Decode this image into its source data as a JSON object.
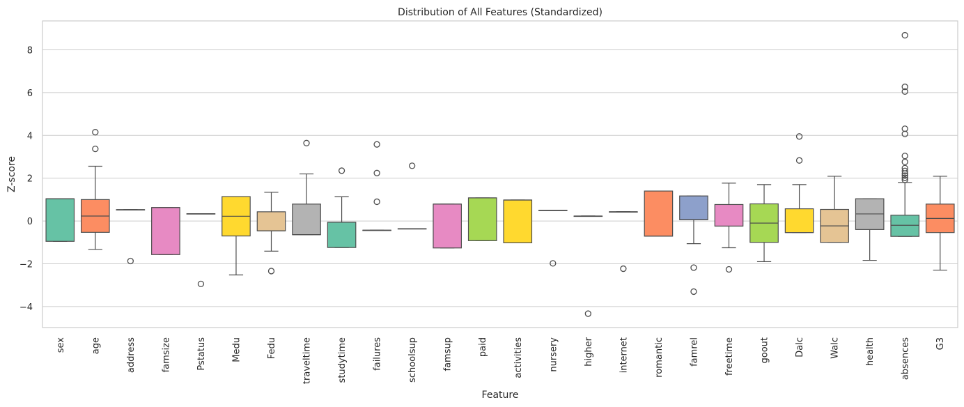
{
  "chart_data": {
    "type": "box",
    "title": "Distribution of All Features (Standardized)",
    "xlabel": "Feature",
    "ylabel": "Z-score",
    "ylim": [
      -4.98,
      9.35
    ],
    "yticks": [
      -4,
      -2,
      0,
      2,
      4,
      6,
      8
    ],
    "grid": "horizontal",
    "legend": "none",
    "categories": [
      "sex",
      "age",
      "address",
      "famsize",
      "Pstatus",
      "Medu",
      "Fedu",
      "traveltime",
      "studytime",
      "failures",
      "schoolsup",
      "famsup",
      "paid",
      "activities",
      "nursery",
      "higher",
      "internet",
      "romantic",
      "famrel",
      "freetime",
      "goout",
      "Dalc",
      "Walc",
      "health",
      "absences",
      "G3"
    ],
    "colors": [
      "#66c2a5",
      "#fc8d62",
      "#8da0cb",
      "#e78ac3",
      "#a6d854",
      "#ffd92f",
      "#e5c494",
      "#b3b3b3"
    ],
    "boxes": [
      {
        "q1": -0.95,
        "median": 1.04,
        "q3": 1.04,
        "wlow": -0.95,
        "whigh": 1.04,
        "outliers": []
      },
      {
        "q1": -0.53,
        "median": 0.23,
        "q3": 1.0,
        "wlow": -1.33,
        "whigh": 2.56,
        "outliers": [
          3.37,
          4.15
        ]
      },
      {
        "q1": 0.53,
        "median": 0.53,
        "q3": 0.53,
        "wlow": 0.53,
        "whigh": 0.53,
        "outliers": [
          -1.87
        ]
      },
      {
        "q1": -1.57,
        "median": 0.63,
        "q3": 0.63,
        "wlow": -1.57,
        "whigh": 0.63,
        "outliers": []
      },
      {
        "q1": 0.34,
        "median": 0.34,
        "q3": 0.34,
        "wlow": 0.34,
        "whigh": 0.34,
        "outliers": [
          -2.94
        ]
      },
      {
        "q1": -0.7,
        "median": 0.22,
        "q3": 1.14,
        "wlow": -2.52,
        "whigh": 1.14,
        "outliers": []
      },
      {
        "q1": -0.46,
        "median": -0.46,
        "q3": 0.43,
        "wlow": -1.41,
        "whigh": 1.34,
        "outliers": [
          -2.34
        ]
      },
      {
        "q1": -0.64,
        "median": -0.64,
        "q3": 0.79,
        "wlow": -0.64,
        "whigh": 2.2,
        "outliers": [
          3.64
        ]
      },
      {
        "q1": -1.24,
        "median": -0.06,
        "q3": -0.06,
        "wlow": -1.24,
        "whigh": 1.13,
        "outliers": [
          2.35
        ]
      },
      {
        "q1": -0.43,
        "median": -0.43,
        "q3": -0.43,
        "wlow": -0.43,
        "whigh": -0.43,
        "outliers": [
          0.9,
          2.24,
          3.58
        ]
      },
      {
        "q1": -0.36,
        "median": -0.36,
        "q3": -0.36,
        "wlow": -0.36,
        "whigh": -0.36,
        "outliers": [
          2.58
        ]
      },
      {
        "q1": -1.26,
        "median": 0.79,
        "q3": 0.79,
        "wlow": -1.26,
        "whigh": 0.79,
        "outliers": []
      },
      {
        "q1": -0.92,
        "median": 1.08,
        "q3": 1.08,
        "wlow": -0.92,
        "whigh": 1.08,
        "outliers": []
      },
      {
        "q1": -1.02,
        "median": 0.98,
        "q3": 0.98,
        "wlow": -1.02,
        "whigh": 0.98,
        "outliers": []
      },
      {
        "q1": 0.5,
        "median": 0.5,
        "q3": 0.5,
        "wlow": 0.5,
        "whigh": 0.5,
        "outliers": [
          -1.98
        ]
      },
      {
        "q1": 0.23,
        "median": 0.23,
        "q3": 0.23,
        "wlow": 0.23,
        "whigh": 0.23,
        "outliers": [
          -4.33
        ]
      },
      {
        "q1": 0.43,
        "median": 0.43,
        "q3": 0.43,
        "wlow": 0.43,
        "whigh": 0.43,
        "outliers": [
          -2.23
        ]
      },
      {
        "q1": -0.71,
        "median": -0.71,
        "q3": 1.4,
        "wlow": -0.71,
        "whigh": 1.4,
        "outliers": []
      },
      {
        "q1": 0.06,
        "median": 0.06,
        "q3": 1.17,
        "wlow": -1.06,
        "whigh": 1.17,
        "outliers": [
          -2.18,
          -3.3
        ]
      },
      {
        "q1": -0.24,
        "median": -0.24,
        "q3": 0.77,
        "wlow": -1.25,
        "whigh": 1.77,
        "outliers": [
          -2.26
        ]
      },
      {
        "q1": -1.0,
        "median": -0.1,
        "q3": 0.8,
        "wlow": -1.9,
        "whigh": 1.7,
        "outliers": []
      },
      {
        "q1": -0.54,
        "median": -0.54,
        "q3": 0.57,
        "wlow": -0.54,
        "whigh": 1.7,
        "outliers": [
          2.83,
          3.95
        ]
      },
      {
        "q1": -1.0,
        "median": -0.23,
        "q3": 0.54,
        "wlow": -1.0,
        "whigh": 2.09,
        "outliers": []
      },
      {
        "q1": -0.4,
        "median": 0.33,
        "q3": 1.04,
        "wlow": -1.84,
        "whigh": 1.04,
        "outliers": []
      },
      {
        "q1": -0.72,
        "median": -0.2,
        "q3": 0.27,
        "wlow": -0.72,
        "whigh": 1.8,
        "outliers": [
          1.92,
          2.02,
          2.12,
          2.22,
          2.34,
          2.47,
          2.76,
          3.04,
          4.07,
          4.31,
          6.05,
          6.27,
          8.68
        ]
      },
      {
        "q1": -0.54,
        "median": 0.12,
        "q3": 0.79,
        "wlow": -2.3,
        "whigh": 2.09,
        "outliers": []
      }
    ]
  }
}
